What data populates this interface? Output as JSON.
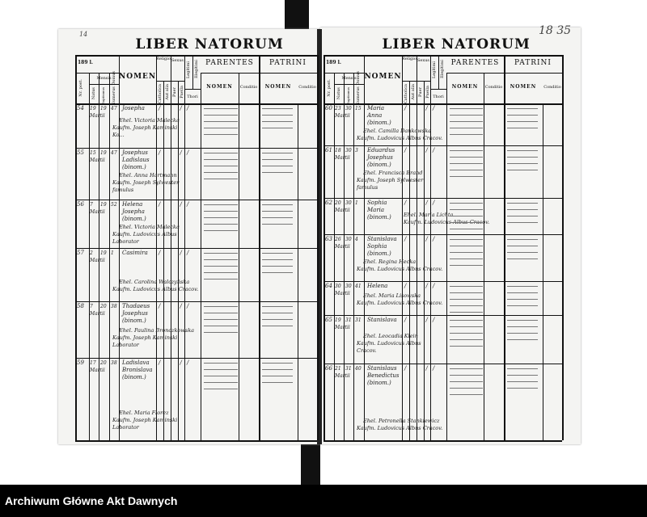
{
  "document": {
    "archive_label": "Archiwum Główne Akt Dawnych",
    "left_page_number": "14",
    "right_page_number": "18 35",
    "header": {
      "title": "LIBER NATORUM",
      "year": "189 l.",
      "st_post": "Nr. post.",
      "mensis": "Mensis",
      "natus": "Natus",
      "baptismus": "Baptismus",
      "numerus_domus": "Numerus Domus",
      "nomen": "NOMEN",
      "religio": "Religio",
      "catholica": "Catholica",
      "aut_alia": "Aut alia",
      "sexus": "Sexus",
      "puer": "Puer",
      "puella": "Puella",
      "legitimi": "Legitimi",
      "illegitimi": "Illegitimi",
      "thori": "Thori",
      "parentes": "PARENTES",
      "patrini": "PATRINI",
      "sub_nomen": "NOMEN",
      "conditio": "Conditio"
    },
    "left_rows": [
      {
        "nr": "54",
        "natus": "19 Martii",
        "bapt": "19",
        "domus": "47",
        "nomen": [
          "Josepha"
        ],
        "parents": [
          "Ehel. Victoria Malecka",
          "Kaufm. Joseph Kaminski",
          "Ko..."
        ]
      },
      {
        "nr": "55",
        "natus": "15 Martii",
        "bapt": "19",
        "domus": "47",
        "nomen": [
          "Josephus",
          "Ladislaus",
          "(binom.)"
        ],
        "parents": [
          "Ehel. Anna Hartmann",
          "Kaufm. Joseph Sylwester",
          "famulus"
        ]
      },
      {
        "nr": "56",
        "natus": "7 Martii",
        "bapt": "19",
        "domus": "52",
        "nomen": [
          "Helena",
          "Josepha",
          "(binom.)"
        ],
        "parents": [
          "Ehel. Victoria Malecka",
          "Kaufm. Ludovicus Albus",
          "Laborator"
        ]
      },
      {
        "nr": "57",
        "natus": "2 Martii",
        "bapt": "19",
        "domus": "1",
        "nomen": [
          "Casimira"
        ],
        "parents": [
          "Ehel. Carolina Walczyńska",
          "Kaufm. Ludovicus Albus Cracov."
        ]
      },
      {
        "nr": "58",
        "natus": "7 Martii",
        "bapt": "20",
        "domus": "38",
        "nomen": [
          "Thadaeus",
          "Josephus",
          "(binom.)"
        ],
        "parents": [
          "Ehel. Paulina Bronczkowska",
          "Kaufm. Joseph Kaminski",
          "Laborator"
        ]
      },
      {
        "nr": "59",
        "natus": "17 Martii",
        "bapt": "20",
        "domus": "38",
        "nomen": [
          "Ladislava",
          "Bronislava",
          "(binom.)"
        ],
        "parents": [
          "Ehel. Maria Florez",
          "Kaufm. Joseph Kaminski",
          "Laborator"
        ]
      }
    ],
    "right_rows": [
      {
        "nr": "60",
        "natus": "23 Martii",
        "bapt": "30",
        "domus": "15",
        "nomen": [
          "Maria",
          "Anna",
          "(binom.)"
        ],
        "parents": [
          "Ehel. Camilla Dankowska",
          "Kaufm. Ludovicus Albus Cracov."
        ]
      },
      {
        "nr": "61",
        "natus": "18 Martii",
        "bapt": "30",
        "domus": "3",
        "nomen": [
          "Eduardus",
          "Josephus",
          "(binom.)"
        ],
        "parents": [
          "Ehel. Francisca Brand",
          "Kaufm. Joseph Sylwester",
          "famulus"
        ]
      },
      {
        "nr": "62",
        "natus": "20 Martii",
        "bapt": "30",
        "domus": "1",
        "nomen": [
          "Sophia",
          "Maria",
          "(binom.)"
        ],
        "parents": [
          "Ehel. Maria Lichta",
          "Kaufm. Ludovicus Albus Cracov."
        ]
      },
      {
        "nr": "63",
        "natus": "26 Martii",
        "bapt": "30",
        "domus": "4",
        "nomen": [
          "Stanislava",
          "Sophia",
          "(binom.)"
        ],
        "parents": [
          "Ehel. Regina Hecka",
          "Kaufm. Ludovicus Albus Cracov."
        ]
      },
      {
        "nr": "64",
        "natus": "30 Martii",
        "bapt": "30",
        "domus": "41",
        "nomen": [
          "Helena"
        ],
        "parents": [
          "Ehel. Maria Lisowska",
          "Kaufm. Ludovicus Albus Cracov."
        ]
      },
      {
        "nr": "65",
        "natus": "19 Martii",
        "bapt": "31",
        "domus": "31",
        "nomen": [
          "Stanislava"
        ],
        "parents": [
          "Ehel. Leocadia Klein",
          "Kaufm. Ludovicus Albus",
          "Cracov."
        ]
      },
      {
        "nr": "66",
        "natus": "21 Martii",
        "bapt": "31",
        "domus": "40",
        "nomen": [
          "Stanislaus",
          "Benedictus",
          "(binom.)"
        ],
        "parents": [
          "Ehel. Petronella Stankiewicz",
          "Kaufm. Ludovicus Albus Cracov."
        ]
      }
    ]
  }
}
